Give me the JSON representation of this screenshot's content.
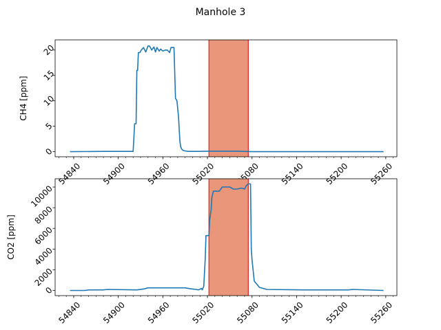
{
  "figure": {
    "title": "Manhole 3"
  },
  "chart_data": [
    {
      "type": "line",
      "ylabel": "CH4 [ppm]",
      "xlim": [
        54815,
        55275
      ],
      "ylim": [
        -1,
        22
      ],
      "x_ticks": [
        54840,
        54900,
        54960,
        55020,
        55080,
        55140,
        55200,
        55260
      ],
      "y_ticks": [
        0,
        5,
        10,
        15,
        20
      ],
      "color": "#1f77b4",
      "shaded_region": {
        "x": [
          55022,
          55075
        ],
        "fill": "#e9967a",
        "edge": "#d62728"
      },
      "series": [
        {
          "x": [
            54835,
            54880,
            54920,
            54922,
            54924,
            54925,
            54926,
            54927,
            54929,
            54931,
            54934,
            54937,
            54940,
            54942,
            54945,
            54948,
            54950,
            54952,
            54955,
            54957,
            54960,
            54963,
            54966,
            54969,
            54971,
            54973,
            54975,
            54977,
            54979,
            54981,
            54983,
            54984,
            54985,
            54986,
            54987,
            54988,
            54990,
            54992,
            54995,
            55000,
            55010,
            55020,
            55060,
            55080,
            55150,
            55257
          ],
          "y": [
            0,
            0.05,
            0.05,
            5.5,
            5.5,
            16,
            16,
            19.5,
            19.5,
            20,
            20.5,
            19.6,
            20.8,
            20.8,
            20,
            20.6,
            19.6,
            20.5,
            19.8,
            20.2,
            19.8,
            20,
            20,
            19.5,
            20.5,
            20.5,
            20.5,
            10.5,
            10,
            7,
            2,
            1,
            0.6,
            0.4,
            0.3,
            0.2,
            0.15,
            0.1,
            0.05,
            0.05,
            0.05,
            0.1,
            0.1,
            0,
            0,
            0
          ]
        }
      ]
    },
    {
      "type": "line",
      "ylabel": "CO2 [ppm]",
      "xlim": [
        54815,
        55275
      ],
      "ylim": [
        -500,
        10800
      ],
      "x_ticks": [
        54840,
        54900,
        54960,
        55020,
        55080,
        55140,
        55200,
        55260
      ],
      "y_ticks": [
        0,
        2000,
        4000,
        6000,
        8000,
        10000
      ],
      "color": "#1f77b4",
      "shaded_region": {
        "x": [
          55022,
          55075
        ],
        "fill": "#e9967a",
        "edge": "#d62728"
      },
      "series": [
        {
          "x": [
            54835,
            54855,
            54860,
            54880,
            54885,
            54925,
            54935,
            54940,
            54990,
            54998,
            55005,
            55008,
            55012,
            55013,
            55015,
            55017,
            55018,
            55022,
            55023,
            55025,
            55026,
            55028,
            55036,
            55040,
            55050,
            55055,
            55060,
            55066,
            55070,
            55072,
            55075,
            55076,
            55078,
            55079,
            55080,
            55083,
            55090,
            55100,
            55150,
            55210,
            55215,
            55257
          ],
          "y": [
            0,
            0,
            50,
            50,
            100,
            50,
            150,
            250,
            250,
            150,
            100,
            50,
            200,
            50,
            400,
            3000,
            5300,
            5300,
            6800,
            7800,
            9000,
            9600,
            9600,
            10000,
            10000,
            9800,
            9800,
            9900,
            9800,
            10100,
            10300,
            10300,
            10300,
            4000,
            3000,
            900,
            300,
            100,
            50,
            50,
            100,
            0
          ]
        }
      ]
    }
  ]
}
